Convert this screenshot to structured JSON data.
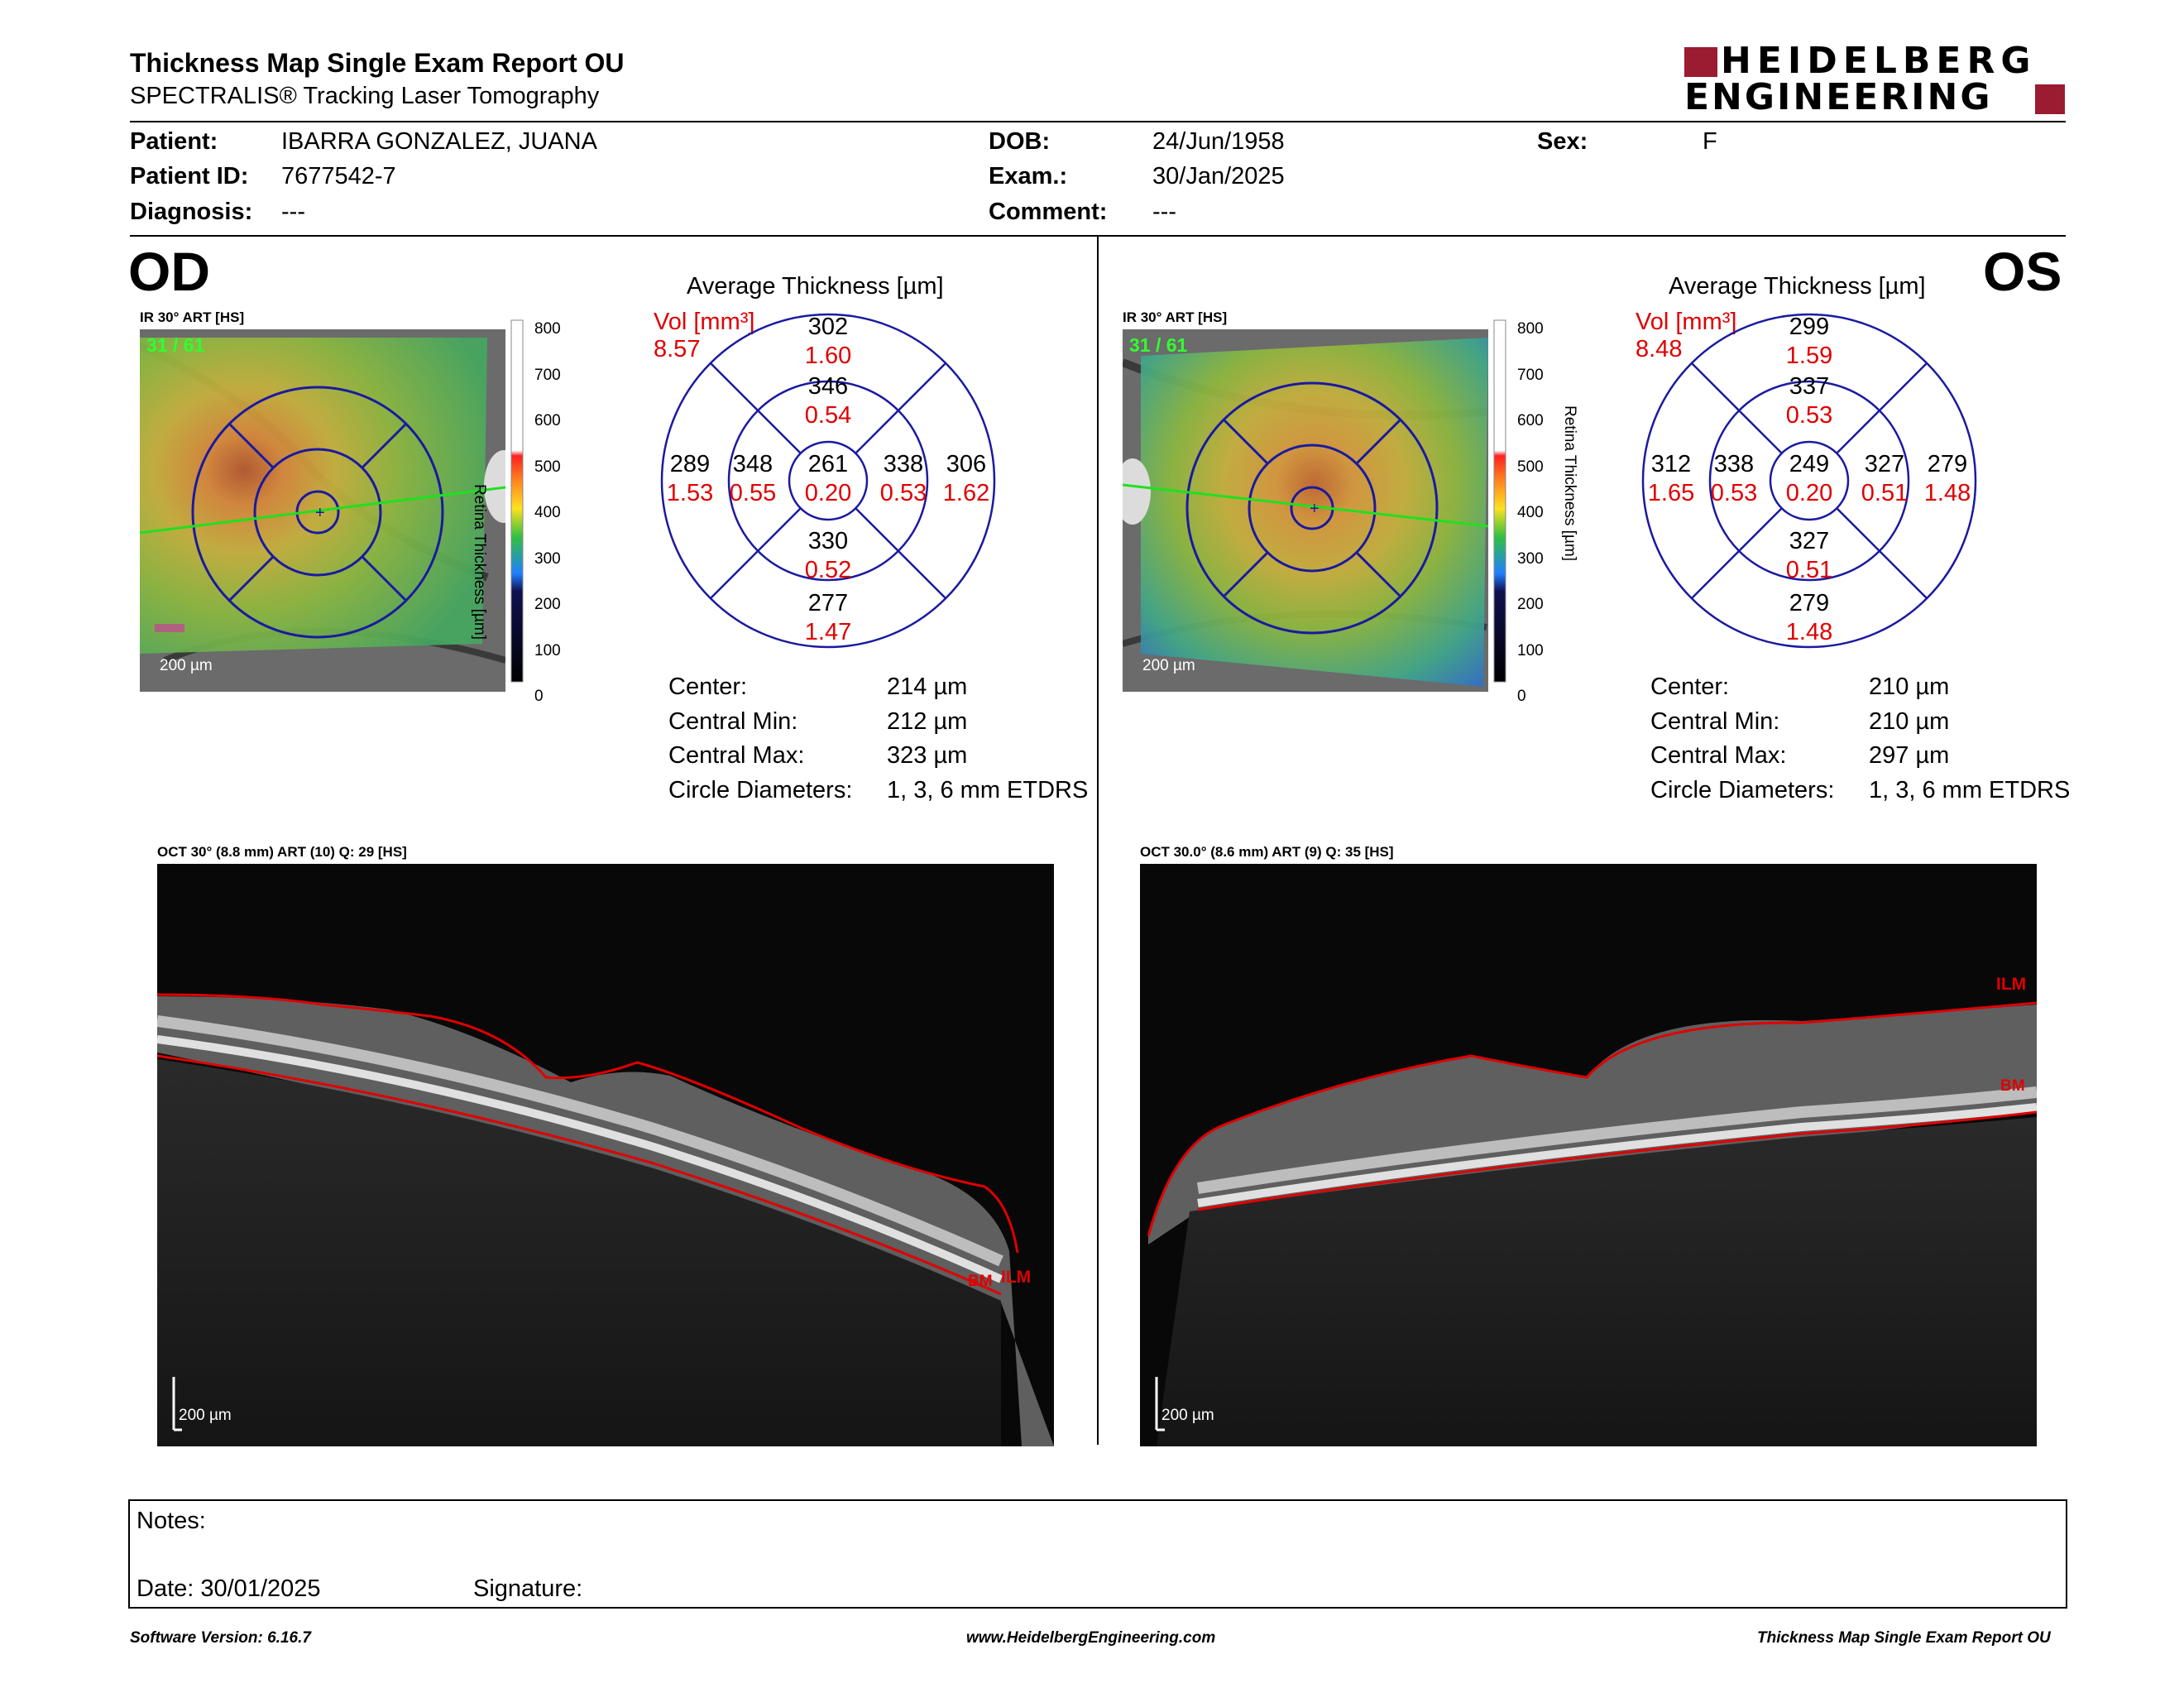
{
  "header": {
    "title": "Thickness Map Single Exam Report OU",
    "subtitle": "SPECTRALIS® Tracking Laser Tomography",
    "logo_line1": "HEIDELBERG",
    "logo_line2": "ENGINEERING",
    "brand_color": "#9b1b30"
  },
  "patient": {
    "patient_label": "Patient:",
    "patient_value": "IBARRA GONZALEZ, JUANA",
    "id_label": "Patient ID:",
    "id_value": "7677542-7",
    "diag_label": "Diagnosis:",
    "diag_value": "---",
    "dob_label": "DOB:",
    "dob_value": "24/Jun/1958",
    "exam_label": "Exam.:",
    "exam_value": "30/Jan/2025",
    "comment_label": "Comment:",
    "comment_value": "---",
    "sex_label": "Sex:",
    "sex_value": "F"
  },
  "scale": {
    "axis_label": "Retina Thickness [µm]",
    "ticks": [
      "800",
      "700",
      "600",
      "500",
      "400",
      "300",
      "200",
      "100",
      "0"
    ]
  },
  "od": {
    "eye": "OD",
    "ir_label": "IR 30° ART [HS]",
    "frame": "31 / 61",
    "scale_bar": "200 µm",
    "avg_title": "Average Thickness [µm]",
    "vol_label": "Vol [mm³]",
    "vol_total": "8.57",
    "grid": {
      "center": {
        "t": "261",
        "v": "0.20"
      },
      "inner_sup": {
        "t": "346",
        "v": "0.54"
      },
      "inner_inf": {
        "t": "330",
        "v": "0.52"
      },
      "inner_nas": {
        "t": "338",
        "v": "0.53"
      },
      "inner_tmp": {
        "t": "348",
        "v": "0.55"
      },
      "outer_sup": {
        "t": "302",
        "v": "1.60"
      },
      "outer_inf": {
        "t": "277",
        "v": "1.47"
      },
      "outer_nas": {
        "t": "306",
        "v": "1.62"
      },
      "outer_tmp": {
        "t": "289",
        "v": "1.53"
      }
    },
    "stats": {
      "center_label": "Center:",
      "center_value": "214 µm",
      "min_label": "Central Min:",
      "min_value": "212 µm",
      "max_label": "Central Max:",
      "max_value": "323 µm",
      "circ_label": "Circle Diameters:",
      "circ_value": "1, 3, 6 mm ETDRS"
    },
    "oct_label": "OCT 30° (8.8 mm) ART (10) Q: 29 [HS]",
    "oct_scale": "200 µm",
    "ilm": "ILM",
    "bm": "BM"
  },
  "os": {
    "eye": "OS",
    "ir_label": "IR 30° ART [HS]",
    "frame": "31 / 61",
    "scale_bar": "200 µm",
    "avg_title": "Average Thickness [µm]",
    "vol_label": "Vol [mm³]",
    "vol_total": "8.48",
    "grid": {
      "center": {
        "t": "249",
        "v": "0.20"
      },
      "inner_sup": {
        "t": "337",
        "v": "0.53"
      },
      "inner_inf": {
        "t": "327",
        "v": "0.51"
      },
      "inner_nas": {
        "t": "338",
        "v": "0.53"
      },
      "inner_tmp": {
        "t": "327",
        "v": "0.51"
      },
      "outer_sup": {
        "t": "299",
        "v": "1.59"
      },
      "outer_inf": {
        "t": "279",
        "v": "1.48"
      },
      "outer_nas": {
        "t": "312",
        "v": "1.65"
      },
      "outer_tmp": {
        "t": "279",
        "v": "1.48"
      }
    },
    "stats": {
      "center_label": "Center:",
      "center_value": "210 µm",
      "min_label": "Central Min:",
      "min_value": "210 µm",
      "max_label": "Central Max:",
      "max_value": "297 µm",
      "circ_label": "Circle Diameters:",
      "circ_value": "1, 3, 6 mm ETDRS"
    },
    "oct_label": "OCT 30.0° (8.6 mm) ART (9) Q: 35 [HS]",
    "oct_scale": "200 µm",
    "ilm": "ILM",
    "bm": "BM"
  },
  "notes": {
    "notes_label": "Notes:",
    "date_label": "Date: 30/01/2025",
    "signature_label": "Signature:"
  },
  "footer": {
    "left": "Software Version: 6.16.7",
    "center": "www.HeidelbergEngineering.com",
    "right": "Thickness Map Single Exam Report OU"
  }
}
